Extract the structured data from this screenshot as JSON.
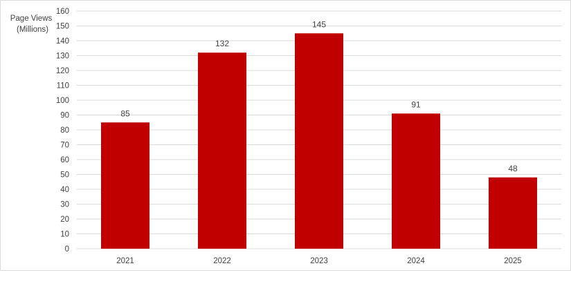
{
  "chart_data": {
    "type": "bar",
    "title": "",
    "xlabel": "",
    "ylabel_lines": [
      "Page Views",
      "(Millions)"
    ],
    "categories": [
      "2021",
      "2022",
      "2023",
      "2024",
      "2025"
    ],
    "values": [
      85,
      132,
      145,
      91,
      48
    ],
    "data_labels": [
      "85",
      "132",
      "145",
      "91",
      "48"
    ],
    "ylim": [
      0,
      160
    ],
    "ytick_step": 10,
    "grid": true,
    "legend": "none",
    "bar_color": "#c00000",
    "gridline_color": "#d9d9d9",
    "text_color": "#404040"
  }
}
